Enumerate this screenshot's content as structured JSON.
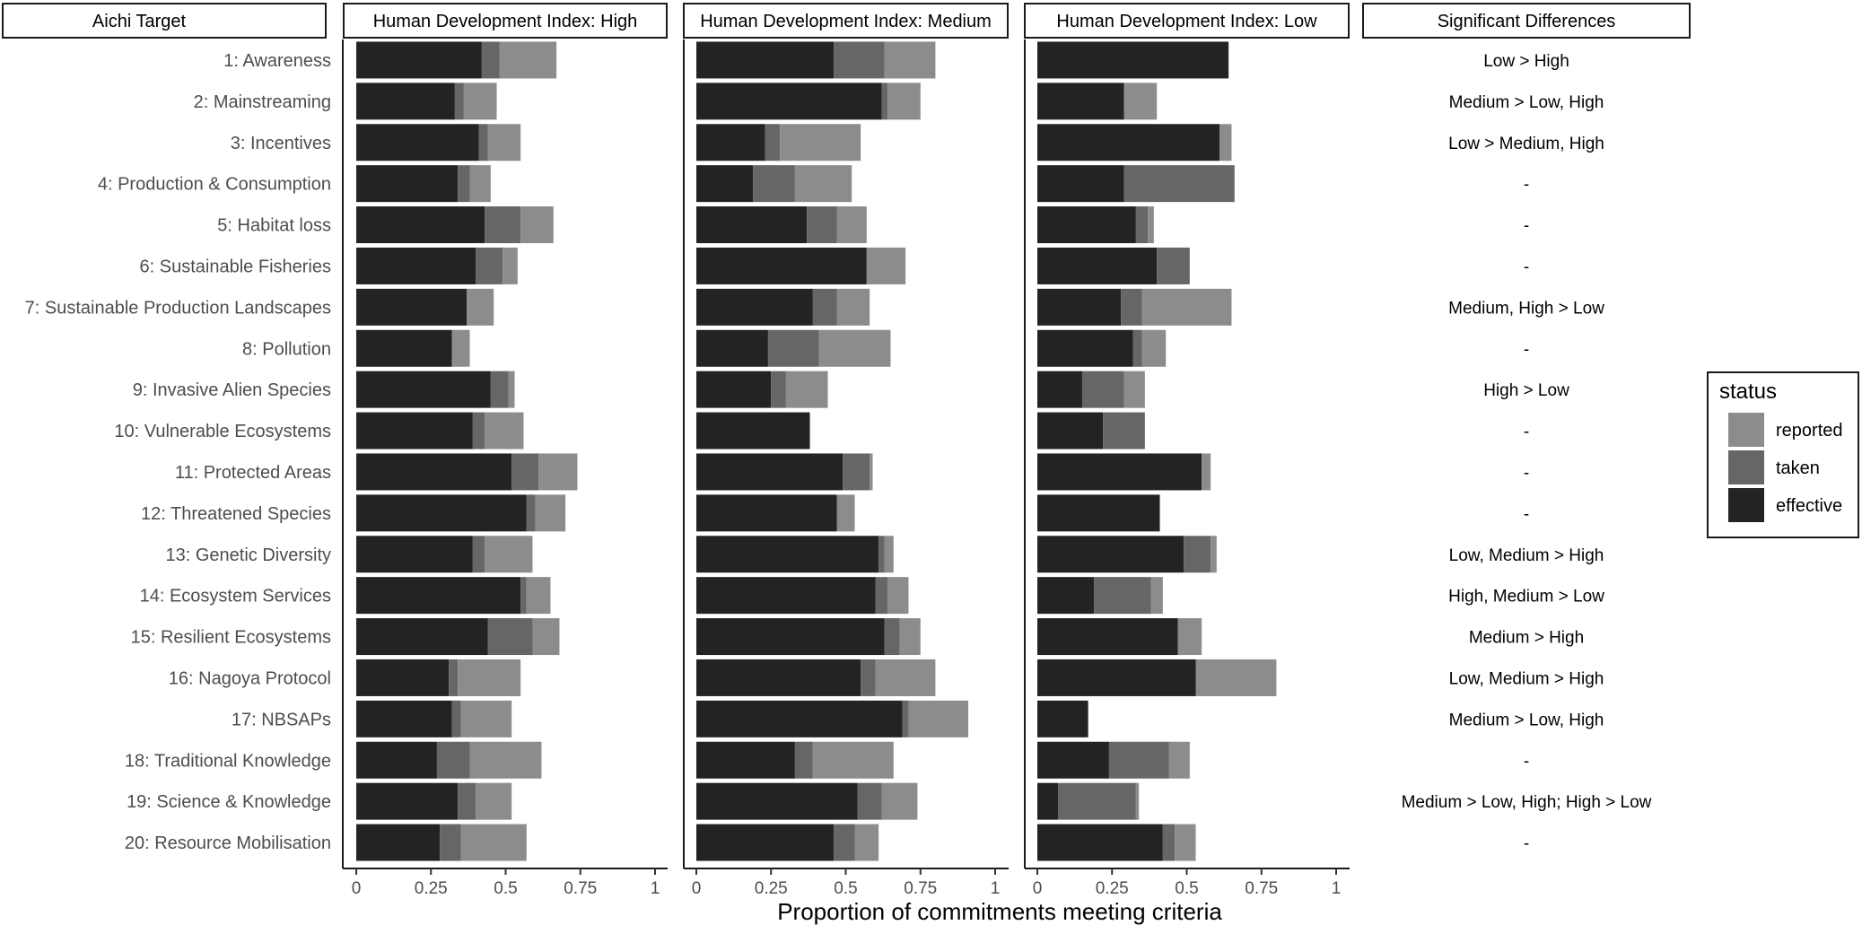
{
  "chart_data": {
    "type": "bar",
    "orientation": "horizontal",
    "stacked": true,
    "xlabel": "Proportion of commitments meeting criteria",
    "xlim": [
      0,
      1
    ],
    "xticks": [
      0,
      0.25,
      0.5,
      0.75,
      1
    ],
    "xtick_labels": [
      "0",
      "0.25",
      "0.5",
      "0.75",
      "1"
    ],
    "row_header": "Aichi Target",
    "diff_header": "Significant Differences",
    "categories": [
      "1: Awareness",
      "2: Mainstreaming",
      "3: Incentives",
      "4: Production & Consumption",
      "5: Habitat loss",
      "6: Sustainable Fisheries",
      "7: Sustainable Production Landscapes",
      "8: Pollution",
      "9: Invasive Alien Species",
      "10: Vulnerable Ecosystems",
      "11: Protected Areas",
      "12: Threatened Species",
      "13: Genetic Diversity",
      "14: Ecosystem Services",
      "15: Resilient Ecosystems",
      "16: Nagoya Protocol",
      "17: NBSAPs",
      "18: Traditional Knowledge",
      "19: Science & Knowledge",
      "20: Resource Mobilisation"
    ],
    "legend": {
      "title": "status",
      "position": "right",
      "items": [
        {
          "key": "reported",
          "label": "reported",
          "color": "#8c8c8c"
        },
        {
          "key": "taken",
          "label": "taken",
          "color": "#666666"
        },
        {
          "key": "effective",
          "label": "effective",
          "color": "#232323"
        }
      ]
    },
    "panels": [
      {
        "title": "Human Development Index: High",
        "effective": [
          0.42,
          0.33,
          0.41,
          0.34,
          0.43,
          0.4,
          0.37,
          0.32,
          0.45,
          0.39,
          0.52,
          0.57,
          0.39,
          0.55,
          0.44,
          0.31,
          0.32,
          0.27,
          0.34,
          0.28
        ],
        "taken": [
          0.06,
          0.03,
          0.03,
          0.04,
          0.12,
          0.09,
          0.0,
          0.0,
          0.06,
          0.04,
          0.09,
          0.03,
          0.04,
          0.02,
          0.15,
          0.03,
          0.03,
          0.11,
          0.06,
          0.07
        ],
        "reported": [
          0.19,
          0.11,
          0.11,
          0.07,
          0.11,
          0.05,
          0.09,
          0.06,
          0.02,
          0.13,
          0.13,
          0.1,
          0.16,
          0.08,
          0.09,
          0.21,
          0.17,
          0.24,
          0.12,
          0.22
        ]
      },
      {
        "title": "Human Development Index: Medium",
        "effective": [
          0.46,
          0.62,
          0.23,
          0.19,
          0.37,
          0.57,
          0.39,
          0.24,
          0.25,
          0.38,
          0.49,
          0.47,
          0.61,
          0.6,
          0.63,
          0.55,
          0.69,
          0.33,
          0.54,
          0.46
        ],
        "taken": [
          0.17,
          0.02,
          0.05,
          0.14,
          0.1,
          0.0,
          0.08,
          0.17,
          0.05,
          0.0,
          0.09,
          0.0,
          0.02,
          0.04,
          0.05,
          0.05,
          0.02,
          0.06,
          0.08,
          0.07
        ],
        "reported": [
          0.17,
          0.11,
          0.27,
          0.19,
          0.1,
          0.13,
          0.11,
          0.24,
          0.14,
          0.0,
          0.01,
          0.06,
          0.03,
          0.07,
          0.07,
          0.2,
          0.2,
          0.27,
          0.12,
          0.08
        ]
      },
      {
        "title": "Human Development Index: Low",
        "effective": [
          0.64,
          0.29,
          0.61,
          0.29,
          0.33,
          0.4,
          0.28,
          0.32,
          0.15,
          0.22,
          0.55,
          0.41,
          0.49,
          0.19,
          0.47,
          0.53,
          0.17,
          0.24,
          0.07,
          0.42
        ],
        "taken": [
          0.0,
          0.0,
          0.0,
          0.37,
          0.04,
          0.11,
          0.07,
          0.03,
          0.14,
          0.14,
          0.0,
          0.0,
          0.09,
          0.19,
          0.0,
          0.0,
          0.0,
          0.2,
          0.26,
          0.04
        ],
        "reported": [
          0.0,
          0.11,
          0.04,
          0.0,
          0.02,
          0.0,
          0.3,
          0.08,
          0.07,
          0.0,
          0.03,
          0.0,
          0.02,
          0.04,
          0.08,
          0.27,
          0.0,
          0.07,
          0.01,
          0.07
        ]
      }
    ],
    "significant_differences": [
      "Low > High",
      "Medium > Low, High",
      "Low > Medium, High",
      "-",
      "-",
      "-",
      "Medium, High > Low",
      "-",
      "High > Low",
      "-",
      "-",
      "-",
      "Low, Medium > High",
      "High, Medium > Low",
      "Medium > High",
      "Low, Medium > High",
      "Medium > Low, High",
      "-",
      "Medium > Low, High; High > Low",
      "-"
    ]
  }
}
